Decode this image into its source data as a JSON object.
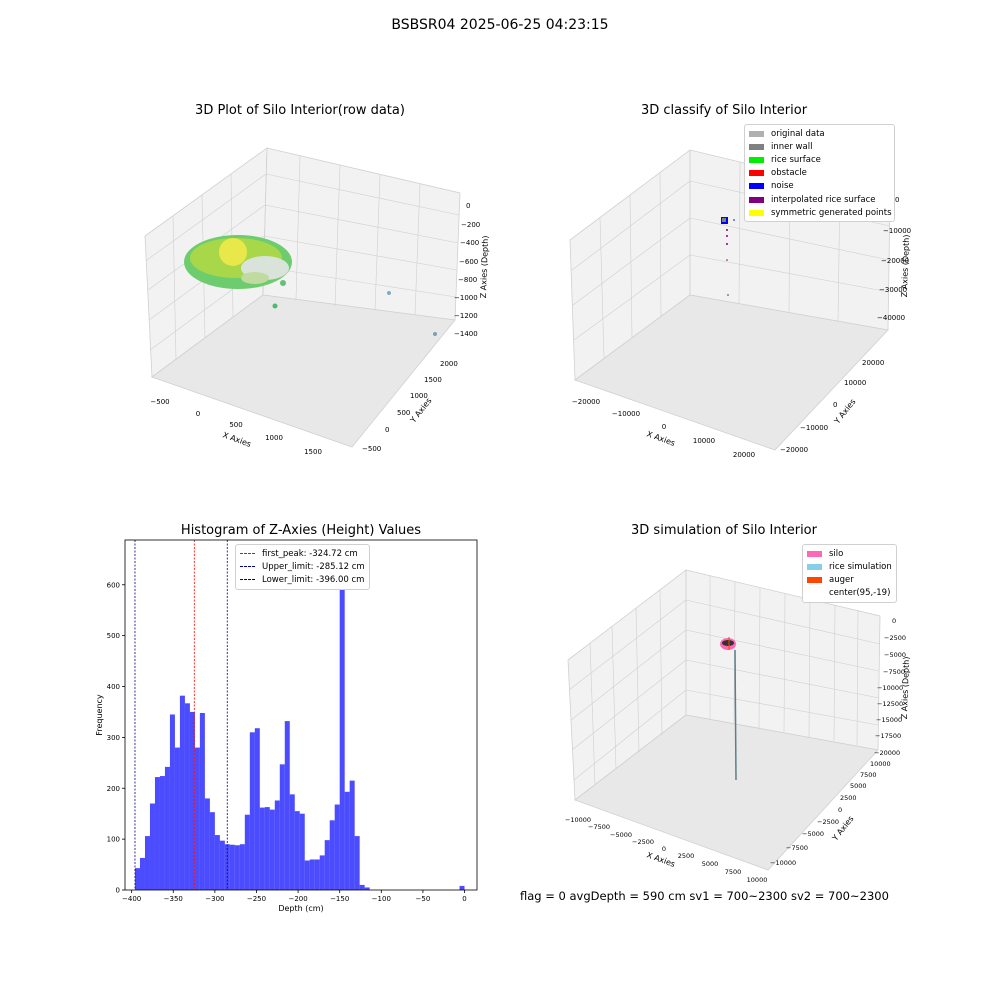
{
  "figure": {
    "title": "BSBSR04 2025-06-25 04:23:15",
    "footer": "flag = 0     avgDepth = 590 cm  sv1 = 700~2300  sv2 = 700~2300"
  },
  "plot3d_raw": {
    "title": "3D Plot of Silo Interior(row data)",
    "xlabel": "X Axies",
    "ylabel": "Y Axies",
    "zlabel": "Z Axies (Depth)",
    "xticks": [
      "−500",
      "0",
      "500",
      "1000",
      "1500"
    ],
    "yticks": [
      "−500",
      "0",
      "500",
      "1000",
      "1500",
      "2000"
    ],
    "zticks": [
      "0",
      "−200",
      "−400",
      "−600",
      "−800",
      "−1000",
      "−1200",
      "−1400"
    ]
  },
  "plot3d_classify": {
    "title": "3D classify of Silo Interior",
    "xlabel": "X Axies",
    "ylabel": "Y Axies",
    "zlabel": "Z Axies (Depth)",
    "xticks": [
      "−20000",
      "−10000",
      "0",
      "10000",
      "20000"
    ],
    "yticks": [
      "−20000",
      "−10000",
      "0",
      "10000",
      "20000"
    ],
    "zticks": [
      "0",
      "−10000",
      "−20000",
      "−30000",
      "−40000"
    ],
    "legend": [
      {
        "label": "original data",
        "color": "#b0b0b0"
      },
      {
        "label": "inner wall",
        "color": "#808080"
      },
      {
        "label": "rice surface",
        "color": "#00ee00"
      },
      {
        "label": "obstacle",
        "color": "#ff0000"
      },
      {
        "label": "noise",
        "color": "#0000ff"
      },
      {
        "label": "interpolated rice surface",
        "color": "#800080"
      },
      {
        "label": "symmetric generated points",
        "color": "#ffff00"
      }
    ]
  },
  "plot3d_sim": {
    "title": "3D simulation of Silo Interior",
    "xlabel": "X Axies",
    "ylabel": "Y Axies",
    "zlabel": "Z Axies (Depth)",
    "xticks": [
      "−10000",
      "−7500",
      "−5000",
      "−2500",
      "0",
      "2500",
      "5000",
      "7500",
      "10000"
    ],
    "yticks": [
      "−10000",
      "−7500",
      "−5000",
      "−2500",
      "0",
      "2500",
      "5000",
      "7500",
      "10000"
    ],
    "zticks": [
      "0",
      "−2500",
      "−5000",
      "−7500",
      "−10000",
      "−12500",
      "−15000",
      "−17500",
      "−20000"
    ],
    "legend": [
      {
        "label": "silo",
        "color": "#ff69b4"
      },
      {
        "label": "rice simulation",
        "color": "#87ceeb"
      },
      {
        "label": "auger",
        "color": "#ff4500"
      },
      {
        "label": "center(95,-19)",
        "color": ""
      }
    ]
  },
  "chart_data": {
    "type": "bar",
    "title": "Histogram of Z-Axies (Height) Values",
    "xlabel": "Depth (cm)",
    "ylabel": "Frequency",
    "xlim": [
      -408,
      15
    ],
    "ylim": [
      0,
      688
    ],
    "xticks": [
      -400,
      -350,
      -300,
      -250,
      -200,
      -150,
      -100,
      -50,
      0
    ],
    "yticks": [
      0,
      100,
      200,
      300,
      400,
      500,
      600
    ],
    "bar_color": "#0000ff",
    "bin_edges": [
      -396.0,
      -390.0,
      -384.0,
      -378.0,
      -372.0,
      -366.0,
      -360.0,
      -354.0,
      -348.0,
      -342.0,
      -336.0,
      -330.0,
      -324.0,
      -318.0,
      -312.0,
      -306.0,
      -300.0,
      -294.0,
      -288.0,
      -282.0,
      -276.0,
      -270.0,
      -264.0,
      -258.0,
      -252.0,
      -246.0,
      -240.0,
      -234.0,
      -228.0,
      -222.0,
      -216.0,
      -210.0,
      -204.0,
      -198.0,
      -192.0,
      -186.0,
      -180.0,
      -174.0,
      -168.0,
      -162.0,
      -156.0,
      -150.0,
      -144.0,
      -138.0,
      -132.0,
      -126.0,
      -120.0,
      -114.0,
      -108.0,
      -102.0,
      -96.0,
      -90.0,
      -84.0,
      -78.0,
      -72.0,
      -66.0,
      -60.0,
      -54.0,
      -48.0,
      -42.0,
      -36.0,
      -30.0,
      -24.0,
      -18.0,
      -12.0,
      -6.0,
      0.0
    ],
    "values": [
      43,
      63,
      106,
      170,
      222,
      224,
      242,
      345,
      280,
      382,
      367,
      350,
      280,
      348,
      180,
      153,
      108,
      97,
      90,
      89,
      88,
      90,
      148,
      310,
      318,
      162,
      163,
      158,
      176,
      247,
      332,
      188,
      155,
      150,
      58,
      60,
      60,
      68,
      98,
      137,
      168,
      658,
      193,
      215,
      106,
      10,
      5,
      0,
      0,
      0,
      0,
      0,
      0,
      0,
      0,
      0,
      0,
      0,
      0,
      0,
      0,
      0,
      0,
      0,
      0,
      8
    ],
    "vlines": [
      {
        "label": "first_peak: -324.72 cm",
        "x": -324.72,
        "color": "#ff0000"
      },
      {
        "label": "Upper_limit: -285.12 cm",
        "x": -285.12,
        "color": "#00008b"
      },
      {
        "label": "Lower_limit: -396.00 cm",
        "x": -396.0,
        "color": "#00008b"
      }
    ],
    "legend_position": "upper-center"
  }
}
